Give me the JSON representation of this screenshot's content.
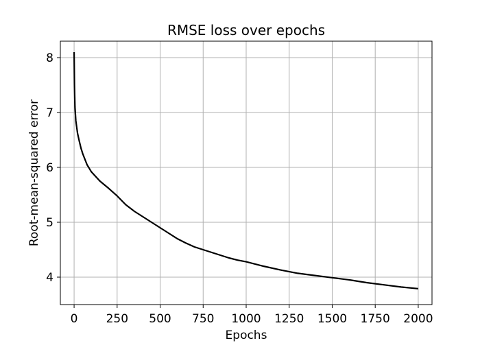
{
  "chart_data": {
    "type": "line",
    "title": "RMSE loss over epochs",
    "xlabel": "Epochs",
    "ylabel": "Root-mean-squared error",
    "xlim": [
      -80,
      2080
    ],
    "ylim": [
      3.5,
      8.3
    ],
    "xticks": [
      0,
      250,
      500,
      750,
      1000,
      1250,
      1500,
      1750,
      2000
    ],
    "yticks": [
      4,
      5,
      6,
      7,
      8
    ],
    "grid": true,
    "legend": "none",
    "series": [
      {
        "color": "#000000",
        "x": [
          0,
          2,
          5,
          10,
          20,
          30,
          40,
          50,
          75,
          100,
          150,
          200,
          250,
          300,
          350,
          400,
          450,
          500,
          550,
          600,
          650,
          700,
          750,
          800,
          850,
          900,
          950,
          1000,
          1100,
          1200,
          1300,
          1400,
          1500,
          1600,
          1700,
          1800,
          1900,
          2000
        ],
        "y": [
          8.1,
          7.5,
          7.1,
          6.85,
          6.62,
          6.48,
          6.35,
          6.25,
          6.05,
          5.92,
          5.75,
          5.62,
          5.48,
          5.32,
          5.2,
          5.1,
          5.0,
          4.9,
          4.8,
          4.7,
          4.62,
          4.55,
          4.5,
          4.45,
          4.4,
          4.35,
          4.31,
          4.28,
          4.2,
          4.13,
          4.07,
          4.03,
          3.99,
          3.95,
          3.9,
          3.86,
          3.82,
          3.79
        ]
      }
    ]
  }
}
